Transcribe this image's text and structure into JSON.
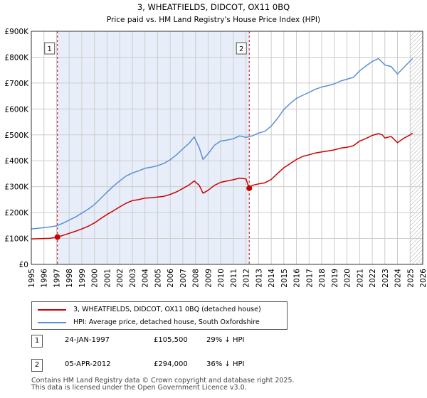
{
  "chart_data": {
    "type": "line",
    "title": "3, WHEATFIELDS, DIDCOT, OX11 0BQ",
    "subtitle": "Price paid vs. HM Land Registry's House Price Index (HPI)",
    "xlabel": "",
    "ylabel": "",
    "xlim": [
      1995,
      2026
    ],
    "ylim": [
      0,
      900000
    ],
    "y_ticks": [
      0,
      100000,
      200000,
      300000,
      400000,
      500000,
      600000,
      700000,
      800000,
      900000
    ],
    "y_tick_labels": [
      "£0",
      "£100K",
      "£200K",
      "£300K",
      "£400K",
      "£500K",
      "£600K",
      "£700K",
      "£800K",
      "£900K"
    ],
    "x_ticks": [
      1995,
      1996,
      1997,
      1998,
      1999,
      2000,
      2001,
      2002,
      2003,
      2004,
      2005,
      2006,
      2007,
      2008,
      2009,
      2010,
      2011,
      2012,
      2013,
      2014,
      2015,
      2016,
      2017,
      2018,
      2019,
      2020,
      2021,
      2022,
      2023,
      2024,
      2025,
      2026
    ],
    "x_tick_labels": [
      "1995",
      "1996",
      "1997",
      "1998",
      "1999",
      "2000",
      "2001",
      "2002",
      "2003",
      "2004",
      "2005",
      "2006",
      "2007",
      "2008",
      "2009",
      "2010",
      "2011",
      "2012",
      "2013",
      "2014",
      "2015",
      "2016",
      "2017",
      "2018",
      "2019",
      "2020",
      "2021",
      "2022",
      "2023",
      "2024",
      "2025",
      "2026"
    ],
    "grid": true,
    "shaded_period": [
      1997.07,
      2012.26
    ],
    "hatched_from": 2025.0,
    "series": [
      {
        "name": "3, WHEATFIELDS, DIDCOT, OX11 0BQ (detached house)",
        "color": "#cc0000",
        "x": [
          1995.0,
          1995.5,
          1996.0,
          1996.5,
          1997.07,
          1997.5,
          1998.0,
          1998.5,
          1999.0,
          1999.5,
          2000.0,
          2000.5,
          2001.0,
          2001.5,
          2002.0,
          2002.5,
          2003.0,
          2003.5,
          2004.0,
          2004.5,
          2005.0,
          2005.5,
          2006.0,
          2006.5,
          2007.0,
          2007.5,
          2007.9,
          2008.3,
          2008.6,
          2009.0,
          2009.5,
          2010.0,
          2010.5,
          2011.0,
          2011.5,
          2012.0,
          2012.26,
          2012.5,
          2013.0,
          2013.5,
          2014.0,
          2014.5,
          2015.0,
          2015.5,
          2016.0,
          2016.5,
          2017.0,
          2017.5,
          2018.0,
          2018.5,
          2019.0,
          2019.5,
          2020.0,
          2020.5,
          2021.0,
          2021.5,
          2022.0,
          2022.5,
          2022.8,
          2023.0,
          2023.5,
          2024.0,
          2024.5,
          2025.0,
          2025.2
        ],
        "values": [
          98000,
          99000,
          100000,
          101000,
          105500,
          112000,
          120000,
          128000,
          137000,
          147000,
          160000,
          177000,
          193000,
          207000,
          222000,
          236000,
          246000,
          250000,
          256000,
          257000,
          260000,
          263000,
          270000,
          280000,
          293000,
          307000,
          322000,
          305000,
          275000,
          286000,
          305000,
          317000,
          322000,
          327000,
          333000,
          330000,
          294000,
          305000,
          311000,
          315000,
          328000,
          351000,
          373000,
          389000,
          405000,
          417000,
          423000,
          430000,
          434000,
          438000,
          442000,
          449000,
          452000,
          458000,
          476000,
          486000,
          498000,
          505000,
          500000,
          488000,
          494000,
          470000,
          487000,
          500000,
          507000
        ]
      },
      {
        "name": "HPI: Average price, detached house, South Oxfordshire",
        "color": "#5b8fd6",
        "x": [
          1995.0,
          1995.5,
          1996.0,
          1996.5,
          1997.0,
          1997.5,
          1998.0,
          1998.5,
          1999.0,
          1999.5,
          2000.0,
          2000.5,
          2001.0,
          2001.5,
          2002.0,
          2002.5,
          2003.0,
          2003.5,
          2004.0,
          2004.5,
          2005.0,
          2005.5,
          2006.0,
          2006.5,
          2007.0,
          2007.5,
          2007.9,
          2008.3,
          2008.6,
          2009.0,
          2009.5,
          2010.0,
          2010.5,
          2011.0,
          2011.5,
          2012.0,
          2012.5,
          2013.0,
          2013.5,
          2014.0,
          2014.5,
          2015.0,
          2015.5,
          2016.0,
          2016.5,
          2017.0,
          2017.5,
          2018.0,
          2018.5,
          2019.0,
          2019.5,
          2020.0,
          2020.5,
          2021.0,
          2021.5,
          2022.0,
          2022.5,
          2022.8,
          2023.0,
          2023.5,
          2024.0,
          2024.5,
          2025.0,
          2025.2
        ],
        "values": [
          137000,
          139000,
          142000,
          145000,
          149000,
          159000,
          171000,
          183000,
          198000,
          213000,
          231000,
          255000,
          279000,
          302000,
          322000,
          341000,
          353000,
          361000,
          371000,
          375000,
          381000,
          390000,
          404000,
          423000,
          446000,
          468000,
          492000,
          450000,
          405000,
          427000,
          460000,
          476000,
          480000,
          485000,
          496000,
          490000,
          496000,
          507000,
          514000,
          534000,
          564000,
          598000,
          621000,
          641000,
          653000,
          664000,
          676000,
          685000,
          690000,
          697000,
          708000,
          715000,
          722000,
          747000,
          766000,
          783000,
          795000,
          780000,
          770000,
          764000,
          735000,
          760000,
          785000,
          795000
        ]
      }
    ],
    "markers": [
      {
        "label": "1",
        "x": 1997.07,
        "y": 105500
      },
      {
        "label": "2",
        "x": 2012.26,
        "y": 294000
      }
    ]
  },
  "legend": {
    "red_label": "3, WHEATFIELDS, DIDCOT, OX11 0BQ (detached house)",
    "blue_label": "HPI: Average price, detached house, South Oxfordshire"
  },
  "transactions": [
    {
      "num": "1",
      "date": "24-JAN-1997",
      "price": "£105,500",
      "hpi": "29% ↓ HPI"
    },
    {
      "num": "2",
      "date": "05-APR-2012",
      "price": "£294,000",
      "hpi": "36% ↓ HPI"
    }
  ],
  "footer": {
    "line1": "Contains HM Land Registry data © Crown copyright and database right 2025.",
    "line2": "This data is licensed under the Open Government Licence v3.0."
  },
  "colors": {
    "red": "#cc0000",
    "blue": "#5b8fd6",
    "shade": "#e8eef9",
    "grid": "#cccccc"
  }
}
